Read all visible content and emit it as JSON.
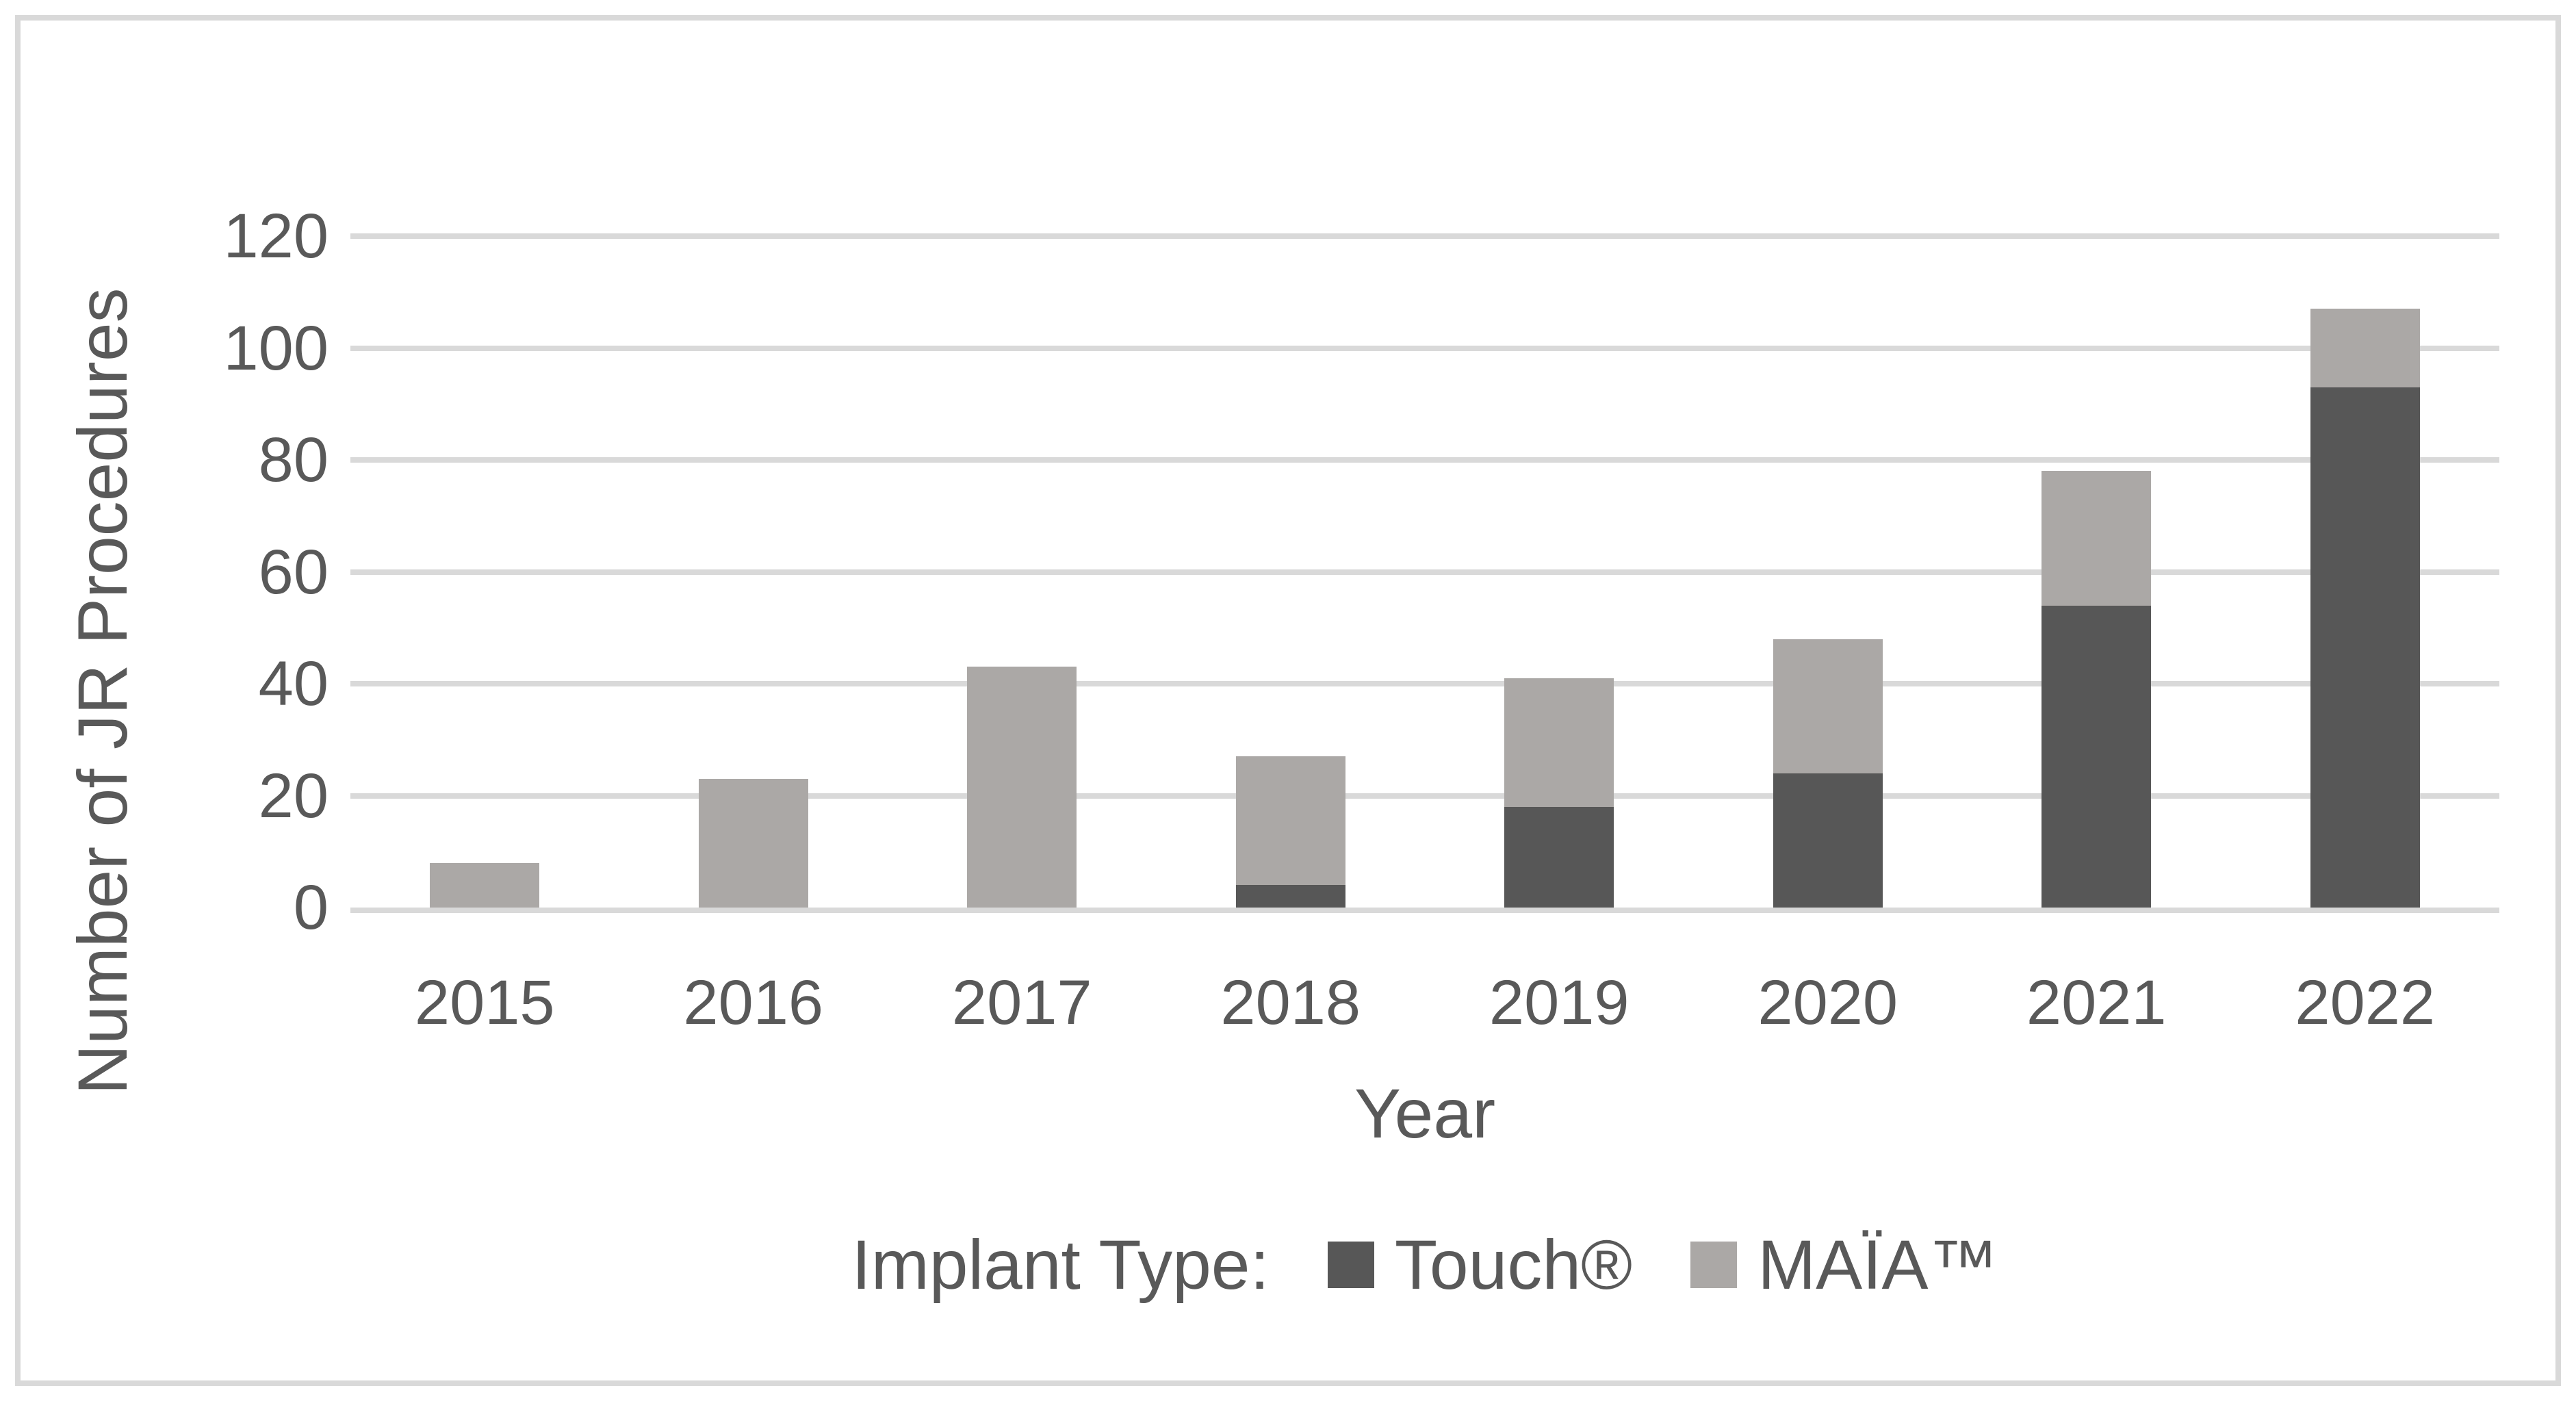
{
  "figure": {
    "background": "#ffffff",
    "border_color": "#d9d9d9",
    "text_color": "#595959"
  },
  "chart_data": {
    "type": "bar",
    "stacked": true,
    "title": "",
    "xlabel": "Year",
    "ylabel": "Number of JR Procedures",
    "categories": [
      "2015",
      "2016",
      "2017",
      "2018",
      "2019",
      "2020",
      "2021",
      "2022"
    ],
    "series": [
      {
        "name": "Touch®",
        "color": "#575757",
        "values": [
          0,
          0,
          0,
          4,
          18,
          24,
          54,
          93
        ]
      },
      {
        "name": "MAÏA™",
        "color": "#aba8a6",
        "values": [
          8,
          23,
          43,
          23,
          23,
          24,
          24,
          14
        ]
      }
    ],
    "stack_totals": [
      8,
      23,
      43,
      27,
      41,
      48,
      78,
      107
    ],
    "ylim": [
      0,
      120
    ],
    "ytick_step": 20,
    "yticks": [
      "0",
      "20",
      "40",
      "60",
      "80",
      "100",
      "120"
    ],
    "grid": "horizontal",
    "gridline_color": "#d9d9d9",
    "legend_title": "Implant Type:",
    "legend_position": "bottom"
  }
}
